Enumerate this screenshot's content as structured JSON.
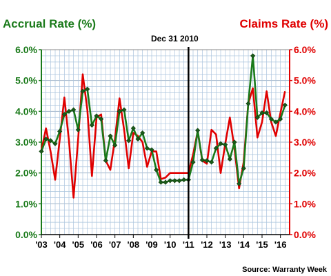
{
  "chart_data": {
    "type": "line",
    "left_axis_title": "Accrual Rate (%)",
    "right_axis_title": "Claims Rate (%)",
    "annotation": "Dec 31 2010",
    "annotation_x": 2011.0,
    "source": "Source: Warranty Week",
    "y_ticks": [
      "0.0%",
      "1.0%",
      "2.0%",
      "3.0%",
      "4.0%",
      "5.0%",
      "6.0%"
    ],
    "ylim": [
      0,
      6
    ],
    "xlim": [
      2003,
      2016.5
    ],
    "x_ticks": [
      {
        "label": "'03",
        "x": 2003
      },
      {
        "label": "'04",
        "x": 2004
      },
      {
        "label": "'05",
        "x": 2005
      },
      {
        "label": "'06",
        "x": 2006
      },
      {
        "label": "'07",
        "x": 2007
      },
      {
        "label": "'08",
        "x": 2008
      },
      {
        "label": "'09",
        "x": 2009
      },
      {
        "label": "'10",
        "x": 2010
      },
      {
        "label": "'11",
        "x": 2011
      },
      {
        "label": "'12",
        "x": 2012
      },
      {
        "label": "'13",
        "x": 2013
      },
      {
        "label": "'14",
        "x": 2014
      },
      {
        "label": "'15",
        "x": 2015
      },
      {
        "label": "'16",
        "x": 2016
      }
    ],
    "colors": {
      "accrual": "#1a7a1a",
      "claims": "#e00000",
      "grid": "#aac4dd",
      "marker": "#1a5a1a"
    },
    "series": [
      {
        "key": "claims",
        "points": [
          [
            2003.0,
            2.72
          ],
          [
            2003.25,
            3.45
          ],
          [
            2003.5,
            2.7
          ],
          [
            2003.75,
            1.78
          ],
          [
            2004.0,
            3.1
          ],
          [
            2004.25,
            4.45
          ],
          [
            2004.5,
            3.05
          ],
          [
            2004.75,
            1.2
          ],
          [
            2005.0,
            3.1
          ],
          [
            2005.25,
            5.2
          ],
          [
            2005.5,
            4.05
          ],
          [
            2005.75,
            1.9
          ],
          [
            2006.0,
            3.8
          ],
          [
            2006.25,
            3.9
          ],
          [
            2006.5,
            2.4
          ],
          [
            2006.75,
            2.1
          ],
          [
            2007.0,
            3.1
          ],
          [
            2007.25,
            4.42
          ],
          [
            2007.5,
            3.4
          ],
          [
            2007.75,
            2.15
          ],
          [
            2008.0,
            3.3
          ],
          [
            2008.25,
            3.2
          ],
          [
            2008.5,
            3.0
          ],
          [
            2008.75,
            2.2
          ],
          [
            2009.0,
            2.7
          ],
          [
            2009.25,
            2.7
          ],
          [
            2009.5,
            1.8
          ],
          [
            2009.75,
            1.85
          ],
          [
            2010.0,
            2.0
          ],
          [
            2010.25,
            2.0
          ],
          [
            2010.5,
            2.0
          ],
          [
            2010.75,
            2.0
          ],
          [
            2011.0,
            2.0
          ],
          [
            2011.25,
            2.6
          ],
          [
            2011.5,
            3.35
          ],
          [
            2011.75,
            2.4
          ],
          [
            2012.0,
            2.3
          ],
          [
            2012.25,
            3.4
          ],
          [
            2012.5,
            3.25
          ],
          [
            2012.75,
            2.0
          ],
          [
            2013.0,
            2.95
          ],
          [
            2013.25,
            3.8
          ],
          [
            2013.5,
            2.8
          ],
          [
            2013.75,
            1.5
          ],
          [
            2014.0,
            2.35
          ],
          [
            2014.25,
            4.25
          ],
          [
            2014.5,
            4.75
          ],
          [
            2014.75,
            3.15
          ],
          [
            2015.0,
            3.65
          ],
          [
            2015.25,
            4.65
          ],
          [
            2015.5,
            3.65
          ],
          [
            2015.75,
            3.2
          ],
          [
            2016.0,
            3.95
          ],
          [
            2016.25,
            4.65
          ]
        ]
      },
      {
        "key": "accrual",
        "points": [
          [
            2003.0,
            2.7
          ],
          [
            2003.25,
            3.1
          ],
          [
            2003.5,
            3.05
          ],
          [
            2003.75,
            2.95
          ],
          [
            2004.0,
            3.35
          ],
          [
            2004.25,
            3.9
          ],
          [
            2004.5,
            4.0
          ],
          [
            2004.75,
            4.05
          ],
          [
            2005.0,
            3.4
          ],
          [
            2005.25,
            4.65
          ],
          [
            2005.5,
            4.72
          ],
          [
            2005.75,
            3.55
          ],
          [
            2006.0,
            3.85
          ],
          [
            2006.25,
            3.75
          ],
          [
            2006.5,
            2.4
          ],
          [
            2006.75,
            3.2
          ],
          [
            2007.0,
            2.9
          ],
          [
            2007.25,
            4.0
          ],
          [
            2007.5,
            4.05
          ],
          [
            2007.75,
            3.05
          ],
          [
            2008.0,
            3.45
          ],
          [
            2008.25,
            3.1
          ],
          [
            2008.5,
            3.3
          ],
          [
            2008.75,
            2.8
          ],
          [
            2009.0,
            2.75
          ],
          [
            2009.25,
            2.1
          ],
          [
            2009.5,
            1.7
          ],
          [
            2009.75,
            1.7
          ],
          [
            2010.0,
            1.75
          ],
          [
            2010.25,
            1.75
          ],
          [
            2010.5,
            1.75
          ],
          [
            2010.75,
            1.78
          ],
          [
            2011.0,
            1.78
          ],
          [
            2011.25,
            2.35
          ],
          [
            2011.5,
            3.38
          ],
          [
            2011.75,
            2.42
          ],
          [
            2012.0,
            2.4
          ],
          [
            2012.25,
            2.35
          ],
          [
            2012.5,
            2.8
          ],
          [
            2012.75,
            2.95
          ],
          [
            2013.0,
            2.92
          ],
          [
            2013.25,
            2.45
          ],
          [
            2013.5,
            3.0
          ],
          [
            2013.75,
            1.65
          ],
          [
            2014.0,
            2.15
          ],
          [
            2014.25,
            4.25
          ],
          [
            2014.5,
            5.8
          ],
          [
            2014.75,
            3.8
          ],
          [
            2015.0,
            3.95
          ],
          [
            2015.25,
            3.95
          ],
          [
            2015.5,
            3.75
          ],
          [
            2015.75,
            3.65
          ],
          [
            2016.0,
            3.75
          ],
          [
            2016.25,
            4.2
          ]
        ]
      }
    ]
  }
}
